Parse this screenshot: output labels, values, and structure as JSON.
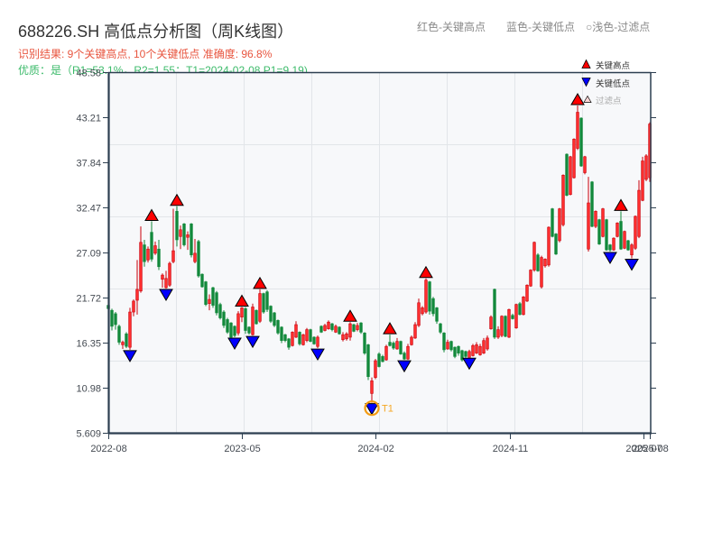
{
  "header": {
    "title": "688226.SH 高低点分析图（周K线图）",
    "result_line": "识别结果: 9个关键高点, 10个关键低点  准确度: 96.8%",
    "quality_line": "优质：是（R1=53.1%，R2=1.55；T1=2024-02-08 P1=9.19)",
    "color_legend": [
      "红色-关键高点",
      "蓝色-关键低点",
      "○浅色-过滤点"
    ]
  },
  "chart_data": {
    "type": "candlestick",
    "title": "688226.SH 高低点分析图（周K线图）",
    "xlabel": "",
    "ylabel": "",
    "ylim": [
      5.609,
      48.58
    ],
    "yticks": [
      48.58,
      43.21,
      37.84,
      32.47,
      27.09,
      21.72,
      16.35,
      10.98,
      5.609
    ],
    "ytick_labels": [
      "48.58",
      "43.21",
      "37.84",
      "32.47",
      "27.09",
      "21.72",
      "16.35",
      "10.98",
      "5.609"
    ],
    "xticks": [
      {
        "label": "2022-08",
        "index": 0
      },
      {
        "label": "2023-05",
        "index": 37
      },
      {
        "label": "2024-02",
        "index": 74
      },
      {
        "label": "2024-11",
        "index": 111.25
      },
      {
        "label": "2025-07",
        "index": 148.25
      },
      {
        "label": "2025-08",
        "index": 150
      }
    ],
    "grid": true,
    "legend_position": "upper right",
    "legend": [
      {
        "label": "关键高点",
        "marker": "red-up-triangle"
      },
      {
        "label": "关键低点",
        "marker": "blue-down-triangle"
      },
      {
        "label": "过滤点",
        "marker": "light-up-triangle"
      }
    ],
    "colors": {
      "up": "#ff2d2d",
      "up_border": "#c8000a",
      "down": "#12893b",
      "key_high": "#ff0000",
      "key_low": "#0000ff",
      "filtered": "#ffd6d6",
      "annotation": "#f39c12",
      "plot_bg": "#f7f8fa",
      "grid": "#e2e5e9",
      "axis": "#2c3e50"
    },
    "bar_format": [
      "open",
      "high",
      "low",
      "close"
    ],
    "bars": [
      [
        20.8,
        21.0,
        20.2,
        20.4
      ],
      [
        20.2,
        20.4,
        17.8,
        18.3
      ],
      [
        19.8,
        20.0,
        17.9,
        18.5
      ],
      [
        18.3,
        18.5,
        16.1,
        16.4
      ],
      [
        16.1,
        16.6,
        15.6,
        16.4
      ],
      [
        17.4,
        17.6,
        15.7,
        15.9
      ],
      [
        15.8,
        20.5,
        15.5,
        20.0
      ],
      [
        20.0,
        21.5,
        19.5,
        21.3
      ],
      [
        21.4,
        26.2,
        19.7,
        22.7
      ],
      [
        22.5,
        30.2,
        22.3,
        28.3
      ],
      [
        28.0,
        28.6,
        25.4,
        26.0
      ],
      [
        26.2,
        27.8,
        25.9,
        27.5
      ],
      [
        29.5,
        30.8,
        26.0,
        26.3
      ],
      [
        27.0,
        28.4,
        26.8,
        27.9
      ],
      [
        27.5,
        28.6,
        25.0,
        25.4
      ],
      [
        23.9,
        24.6,
        22.9,
        24.4
      ],
      [
        22.9,
        24.9,
        22.8,
        24.0
      ],
      [
        23.2,
        26.0,
        23.0,
        25.8
      ],
      [
        26.0,
        32.3,
        25.8,
        27.3
      ],
      [
        32.0,
        32.6,
        27.8,
        28.6
      ],
      [
        29.0,
        30.3,
        27.5,
        29.8
      ],
      [
        30.5,
        30.6,
        27.8,
        28.0
      ],
      [
        28.9,
        29.6,
        27.4,
        29.2
      ],
      [
        30.5,
        30.6,
        26.5,
        26.8
      ],
      [
        26.0,
        28.7,
        25.8,
        27.0
      ],
      [
        28.4,
        28.6,
        24.1,
        24.3
      ],
      [
        24.5,
        24.6,
        22.9,
        23.0
      ],
      [
        23.6,
        23.7,
        20.7,
        20.9
      ],
      [
        21.0,
        22.1,
        20.2,
        21.5
      ],
      [
        22.9,
        23.0,
        20.5,
        20.8
      ],
      [
        22.3,
        22.5,
        19.6,
        19.9
      ],
      [
        20.9,
        21.1,
        19.1,
        19.3
      ],
      [
        20.0,
        20.2,
        18.1,
        18.4
      ],
      [
        19.1,
        19.3,
        17.4,
        17.6
      ],
      [
        18.7,
        18.8,
        16.8,
        17.0
      ],
      [
        18.3,
        18.4,
        17.0,
        17.2
      ],
      [
        17.5,
        20.1,
        17.2,
        19.8
      ],
      [
        19.4,
        20.6,
        18.8,
        20.5
      ],
      [
        20.4,
        20.6,
        17.4,
        17.8
      ],
      [
        18.2,
        18.3,
        17.3,
        17.5
      ],
      [
        17.3,
        21.0,
        17.2,
        20.6
      ],
      [
        20.2,
        20.3,
        18.5,
        18.6
      ],
      [
        18.9,
        22.7,
        18.7,
        22.2
      ],
      [
        22.2,
        22.3,
        19.8,
        20.0
      ],
      [
        22.4,
        22.6,
        20.0,
        20.3
      ],
      [
        20.7,
        20.8,
        18.7,
        18.9
      ],
      [
        19.9,
        20.0,
        18.2,
        18.4
      ],
      [
        19.0,
        19.1,
        17.3,
        17.5
      ],
      [
        18.2,
        18.3,
        16.3,
        16.6
      ],
      [
        17.3,
        17.4,
        16.4,
        16.6
      ],
      [
        16.8,
        16.9,
        15.5,
        15.8
      ],
      [
        16.0,
        17.7,
        15.9,
        17.6
      ],
      [
        17.0,
        18.9,
        16.9,
        18.5
      ],
      [
        17.6,
        17.7,
        16.0,
        16.2
      ],
      [
        16.1,
        17.4,
        16.0,
        17.3
      ],
      [
        16.6,
        18.1,
        16.4,
        17.9
      ],
      [
        17.9,
        18.0,
        16.4,
        16.5
      ],
      [
        17.0,
        17.1,
        16.1,
        16.2
      ],
      [
        15.9,
        17.2,
        15.7,
        17.0
      ],
      [
        18.3,
        18.4,
        17.5,
        17.6
      ],
      [
        17.8,
        18.6,
        17.7,
        18.4
      ],
      [
        18.0,
        19.0,
        17.9,
        18.8
      ],
      [
        18.6,
        18.7,
        17.7,
        17.9
      ],
      [
        17.6,
        18.5,
        17.5,
        18.3
      ],
      [
        18.2,
        18.3,
        17.3,
        17.4
      ],
      [
        16.7,
        17.6,
        16.5,
        17.3
      ],
      [
        16.8,
        17.6,
        16.6,
        17.4
      ],
      [
        17.0,
        18.8,
        16.6,
        18.6
      ],
      [
        18.5,
        18.6,
        17.6,
        17.7
      ],
      [
        17.9,
        18.7,
        17.7,
        18.4
      ],
      [
        18.7,
        18.8,
        17.4,
        17.6
      ],
      [
        17.5,
        17.6,
        14.9,
        15.1
      ],
      [
        16.1,
        16.2,
        11.9,
        12.3
      ],
      [
        10.3,
        12.2,
        9.19,
        11.8
      ],
      [
        12.2,
        14.4,
        12.0,
        14.2
      ],
      [
        15.0,
        15.2,
        13.4,
        13.5
      ],
      [
        14.7,
        14.9,
        14.0,
        14.1
      ],
      [
        14.3,
        16.1,
        14.2,
        15.9
      ],
      [
        16.4,
        17.3,
        15.9,
        16.0
      ],
      [
        16.3,
        16.5,
        15.5,
        15.7
      ],
      [
        15.6,
        16.9,
        15.5,
        16.5
      ],
      [
        16.5,
        16.6,
        14.9,
        15.0
      ],
      [
        15.1,
        15.3,
        14.3,
        14.4
      ],
      [
        14.4,
        16.2,
        14.3,
        15.9
      ],
      [
        16.1,
        17.2,
        16.0,
        17.0
      ],
      [
        16.9,
        18.8,
        16.8,
        18.5
      ],
      [
        18.4,
        21.6,
        18.2,
        21.1
      ],
      [
        19.8,
        20.7,
        19.6,
        20.5
      ],
      [
        20.0,
        24.0,
        19.8,
        23.8
      ],
      [
        23.6,
        23.7,
        19.7,
        20.1
      ],
      [
        21.6,
        21.8,
        19.5,
        19.8
      ],
      [
        20.5,
        20.6,
        18.6,
        18.9
      ],
      [
        18.6,
        18.7,
        17.4,
        17.6
      ],
      [
        17.5,
        17.6,
        15.2,
        15.5
      ],
      [
        15.6,
        16.7,
        15.5,
        16.4
      ],
      [
        16.5,
        16.6,
        15.3,
        15.5
      ],
      [
        15.8,
        15.9,
        14.5,
        14.7
      ],
      [
        15.9,
        16.0,
        14.8,
        15.1
      ],
      [
        15.4,
        15.5,
        14.1,
        14.3
      ],
      [
        15.3,
        15.4,
        14.5,
        14.7
      ],
      [
        14.6,
        15.5,
        14.6,
        15.3
      ],
      [
        14.8,
        16.2,
        14.7,
        16.0
      ],
      [
        15.1,
        16.4,
        15.0,
        16.1
      ],
      [
        14.9,
        16.2,
        14.8,
        15.9
      ],
      [
        15.1,
        16.9,
        15.0,
        16.6
      ],
      [
        15.6,
        17.2,
        15.4,
        16.9
      ],
      [
        18.0,
        19.6,
        17.9,
        19.4
      ],
      [
        22.7,
        22.8,
        16.8,
        17.0
      ],
      [
        17.0,
        18.3,
        16.8,
        17.9
      ],
      [
        17.2,
        19.6,
        17.0,
        19.5
      ],
      [
        19.5,
        19.6,
        17.0,
        17.1
      ],
      [
        17.0,
        20.4,
        16.9,
        20.3
      ],
      [
        19.6,
        19.8,
        19.1,
        19.2
      ],
      [
        18.1,
        21.0,
        18.0,
        20.9
      ],
      [
        21.0,
        21.2,
        19.6,
        19.7
      ],
      [
        19.7,
        21.9,
        19.6,
        21.8
      ],
      [
        21.3,
        23.3,
        21.2,
        23.2
      ],
      [
        23.1,
        25.1,
        23.0,
        25.0
      ],
      [
        25.0,
        28.4,
        24.8,
        28.3
      ],
      [
        26.8,
        27.0,
        24.8,
        24.9
      ],
      [
        23.0,
        26.7,
        22.8,
        26.5
      ],
      [
        25.5,
        26.4,
        25.3,
        26.3
      ],
      [
        25.6,
        30.2,
        25.4,
        30.1
      ],
      [
        32.3,
        32.4,
        28.9,
        29.0
      ],
      [
        29.3,
        29.4,
        26.8,
        26.9
      ],
      [
        28.5,
        32.4,
        28.3,
        32.3
      ],
      [
        30.4,
        36.4,
        30.2,
        36.3
      ],
      [
        38.8,
        38.9,
        33.8,
        33.9
      ],
      [
        34.0,
        38.6,
        33.9,
        38.5
      ],
      [
        36.0,
        40.7,
        35.9,
        40.6
      ],
      [
        39.5,
        44.6,
        39.3,
        43.8
      ],
      [
        43.1,
        43.2,
        37.3,
        37.4
      ],
      [
        36.6,
        38.6,
        36.4,
        38.5
      ],
      [
        27.5,
        36.1,
        27.2,
        33.0
      ],
      [
        35.5,
        35.6,
        30.1,
        30.2
      ],
      [
        30.2,
        32.1,
        30.0,
        32.0
      ],
      [
        31.0,
        31.1,
        28.0,
        28.1
      ],
      [
        29.0,
        32.4,
        28.9,
        32.3
      ],
      [
        31.0,
        31.1,
        27.3,
        27.4
      ],
      [
        28.0,
        28.1,
        27.2,
        27.4
      ],
      [
        27.4,
        28.9,
        27.3,
        28.8
      ],
      [
        29.0,
        30.7,
        28.9,
        30.6
      ],
      [
        30.8,
        32.0,
        27.4,
        27.5
      ],
      [
        27.6,
        29.7,
        27.5,
        29.6
      ],
      [
        28.5,
        28.6,
        27.3,
        27.4
      ],
      [
        26.8,
        28.2,
        26.4,
        28.0
      ],
      [
        27.6,
        31.5,
        27.4,
        31.4
      ],
      [
        29.0,
        35.7,
        28.8,
        34.5
      ],
      [
        33.3,
        38.5,
        33.2,
        38.0
      ],
      [
        35.8,
        38.8,
        35.6,
        38.6
      ],
      [
        36.0,
        42.6,
        35.5,
        42.4
      ]
    ],
    "key_highs": [
      {
        "index": 12,
        "price": 30.8
      },
      {
        "index": 19,
        "price": 32.6
      },
      {
        "index": 37,
        "price": 20.6
      },
      {
        "index": 42,
        "price": 22.7
      },
      {
        "index": 67,
        "price": 18.8
      },
      {
        "index": 78,
        "price": 17.3
      },
      {
        "index": 88,
        "price": 24.0
      },
      {
        "index": 130,
        "price": 44.6
      },
      {
        "index": 142,
        "price": 32.0
      }
    ],
    "key_lows": [
      {
        "index": 6,
        "price": 15.5
      },
      {
        "index": 16,
        "price": 22.8
      },
      {
        "index": 35,
        "price": 17.0
      },
      {
        "index": 40,
        "price": 17.2
      },
      {
        "index": 58,
        "price": 15.7
      },
      {
        "index": 73,
        "price": 9.19
      },
      {
        "index": 82,
        "price": 14.3
      },
      {
        "index": 100,
        "price": 14.6
      },
      {
        "index": 139,
        "price": 27.2
      },
      {
        "index": 145,
        "price": 26.4
      }
    ],
    "annotations": [
      {
        "label": "T1",
        "index": 73,
        "price": 9.19,
        "date": "2024-02-08"
      }
    ]
  }
}
